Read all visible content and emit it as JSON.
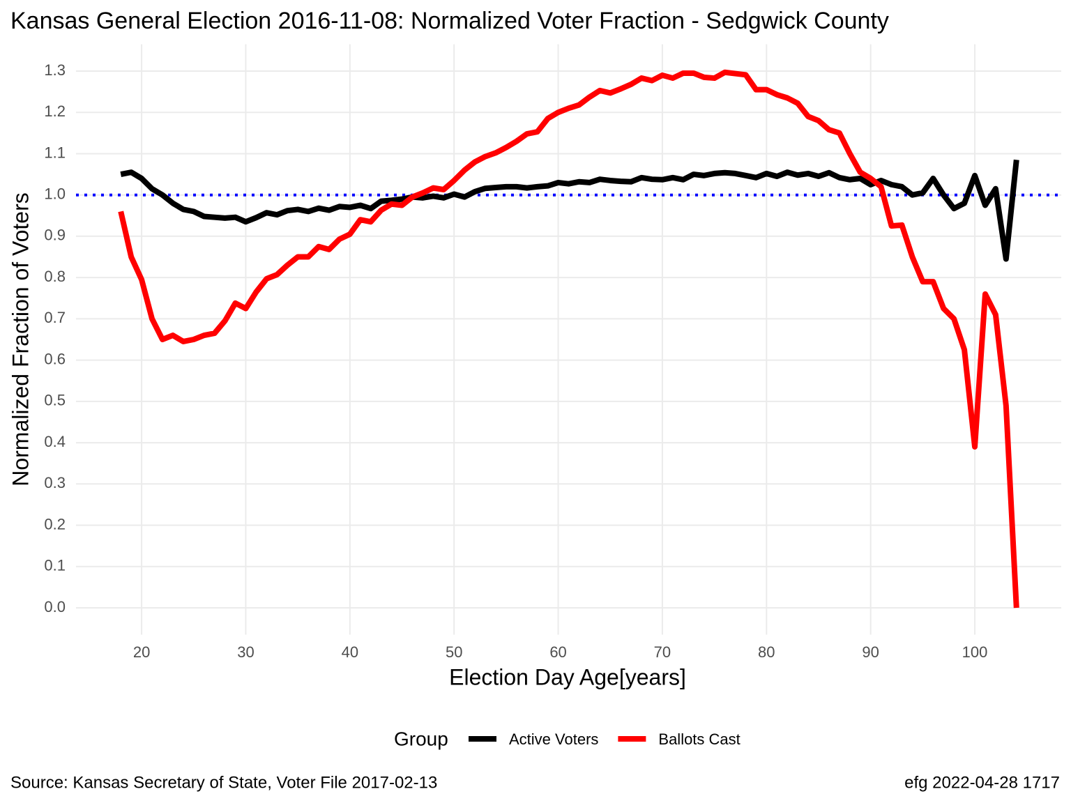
{
  "chart_data": {
    "type": "line",
    "title": "Kansas General Election 2016-11-08:  Normalized Voter Fraction - Sedgwick County",
    "xlabel": "Election Day Age[years]",
    "ylabel": "Normalized Fraction of Voters",
    "legend_title": "Group",
    "caption_left": "Source:  Kansas Secretary of State, Voter File  2017-02-13",
    "caption_right": "efg 2022-04-28 1717",
    "x": [
      18,
      19,
      20,
      21,
      22,
      23,
      24,
      25,
      26,
      27,
      28,
      29,
      30,
      31,
      32,
      33,
      34,
      35,
      36,
      37,
      38,
      39,
      40,
      41,
      42,
      43,
      44,
      45,
      46,
      47,
      48,
      49,
      50,
      51,
      52,
      53,
      54,
      55,
      56,
      57,
      58,
      59,
      60,
      61,
      62,
      63,
      64,
      65,
      66,
      67,
      68,
      69,
      70,
      71,
      72,
      73,
      74,
      75,
      76,
      77,
      78,
      79,
      80,
      81,
      82,
      83,
      84,
      85,
      86,
      87,
      88,
      89,
      90,
      91,
      92,
      93,
      94,
      95,
      96,
      97,
      98,
      99,
      100,
      101,
      102,
      103,
      104
    ],
    "series": [
      {
        "name": "Active Voters",
        "color": "#000000",
        "values": [
          1.05,
          1.055,
          1.04,
          1.015,
          1.0,
          0.98,
          0.965,
          0.96,
          0.948,
          0.946,
          0.944,
          0.946,
          0.935,
          0.945,
          0.957,
          0.952,
          0.962,
          0.965,
          0.96,
          0.968,
          0.963,
          0.972,
          0.97,
          0.975,
          0.967,
          0.985,
          0.987,
          0.99,
          0.995,
          0.993,
          0.997,
          0.993,
          1.002,
          0.995,
          1.008,
          1.016,
          1.018,
          1.02,
          1.02,
          1.017,
          1.02,
          1.022,
          1.03,
          1.027,
          1.032,
          1.03,
          1.038,
          1.035,
          1.033,
          1.032,
          1.042,
          1.038,
          1.037,
          1.042,
          1.037,
          1.05,
          1.047,
          1.052,
          1.054,
          1.052,
          1.047,
          1.042,
          1.052,
          1.045,
          1.055,
          1.048,
          1.052,
          1.045,
          1.054,
          1.042,
          1.037,
          1.04,
          1.025,
          1.035,
          1.025,
          1.02,
          1.0,
          1.005,
          1.04,
          1.0,
          0.967,
          0.98,
          1.047,
          0.975,
          1.015,
          0.845,
          1.085
        ]
      },
      {
        "name": "Ballots Cast",
        "color": "#ff0000",
        "values": [
          0.96,
          0.85,
          0.795,
          0.7,
          0.65,
          0.66,
          0.645,
          0.65,
          0.66,
          0.665,
          0.695,
          0.738,
          0.725,
          0.765,
          0.797,
          0.807,
          0.83,
          0.85,
          0.85,
          0.875,
          0.868,
          0.893,
          0.905,
          0.94,
          0.935,
          0.963,
          0.978,
          0.975,
          0.995,
          1.005,
          1.017,
          1.013,
          1.035,
          1.06,
          1.08,
          1.093,
          1.102,
          1.115,
          1.13,
          1.148,
          1.153,
          1.185,
          1.2,
          1.21,
          1.218,
          1.237,
          1.253,
          1.247,
          1.257,
          1.268,
          1.283,
          1.277,
          1.29,
          1.283,
          1.295,
          1.295,
          1.285,
          1.283,
          1.297,
          1.294,
          1.291,
          1.255,
          1.255,
          1.243,
          1.235,
          1.222,
          1.19,
          1.18,
          1.158,
          1.15,
          1.1,
          1.055,
          1.04,
          1.02,
          0.925,
          0.927,
          0.85,
          0.79,
          0.79,
          0.725,
          0.7,
          0.625,
          0.39,
          0.76,
          0.71,
          0.49,
          0.0
        ]
      }
    ],
    "reference_line": {
      "value": 1,
      "color": "#0000ff"
    },
    "xlim": [
      13.7,
      108.3
    ],
    "ylim": [
      -0.065,
      1.365
    ],
    "xticks": [
      20,
      30,
      40,
      50,
      60,
      70,
      80,
      90,
      100
    ],
    "yticks": [
      {
        "value": 0,
        "label": "0.0"
      },
      0.1,
      0.2,
      0.3,
      0.4,
      0.5,
      0.6,
      0.7,
      0.8,
      0.9,
      {
        "value": 1,
        "label": "1.0"
      },
      1.1,
      1.2,
      1.3
    ],
    "grid": true,
    "legend_position": "bottom"
  }
}
